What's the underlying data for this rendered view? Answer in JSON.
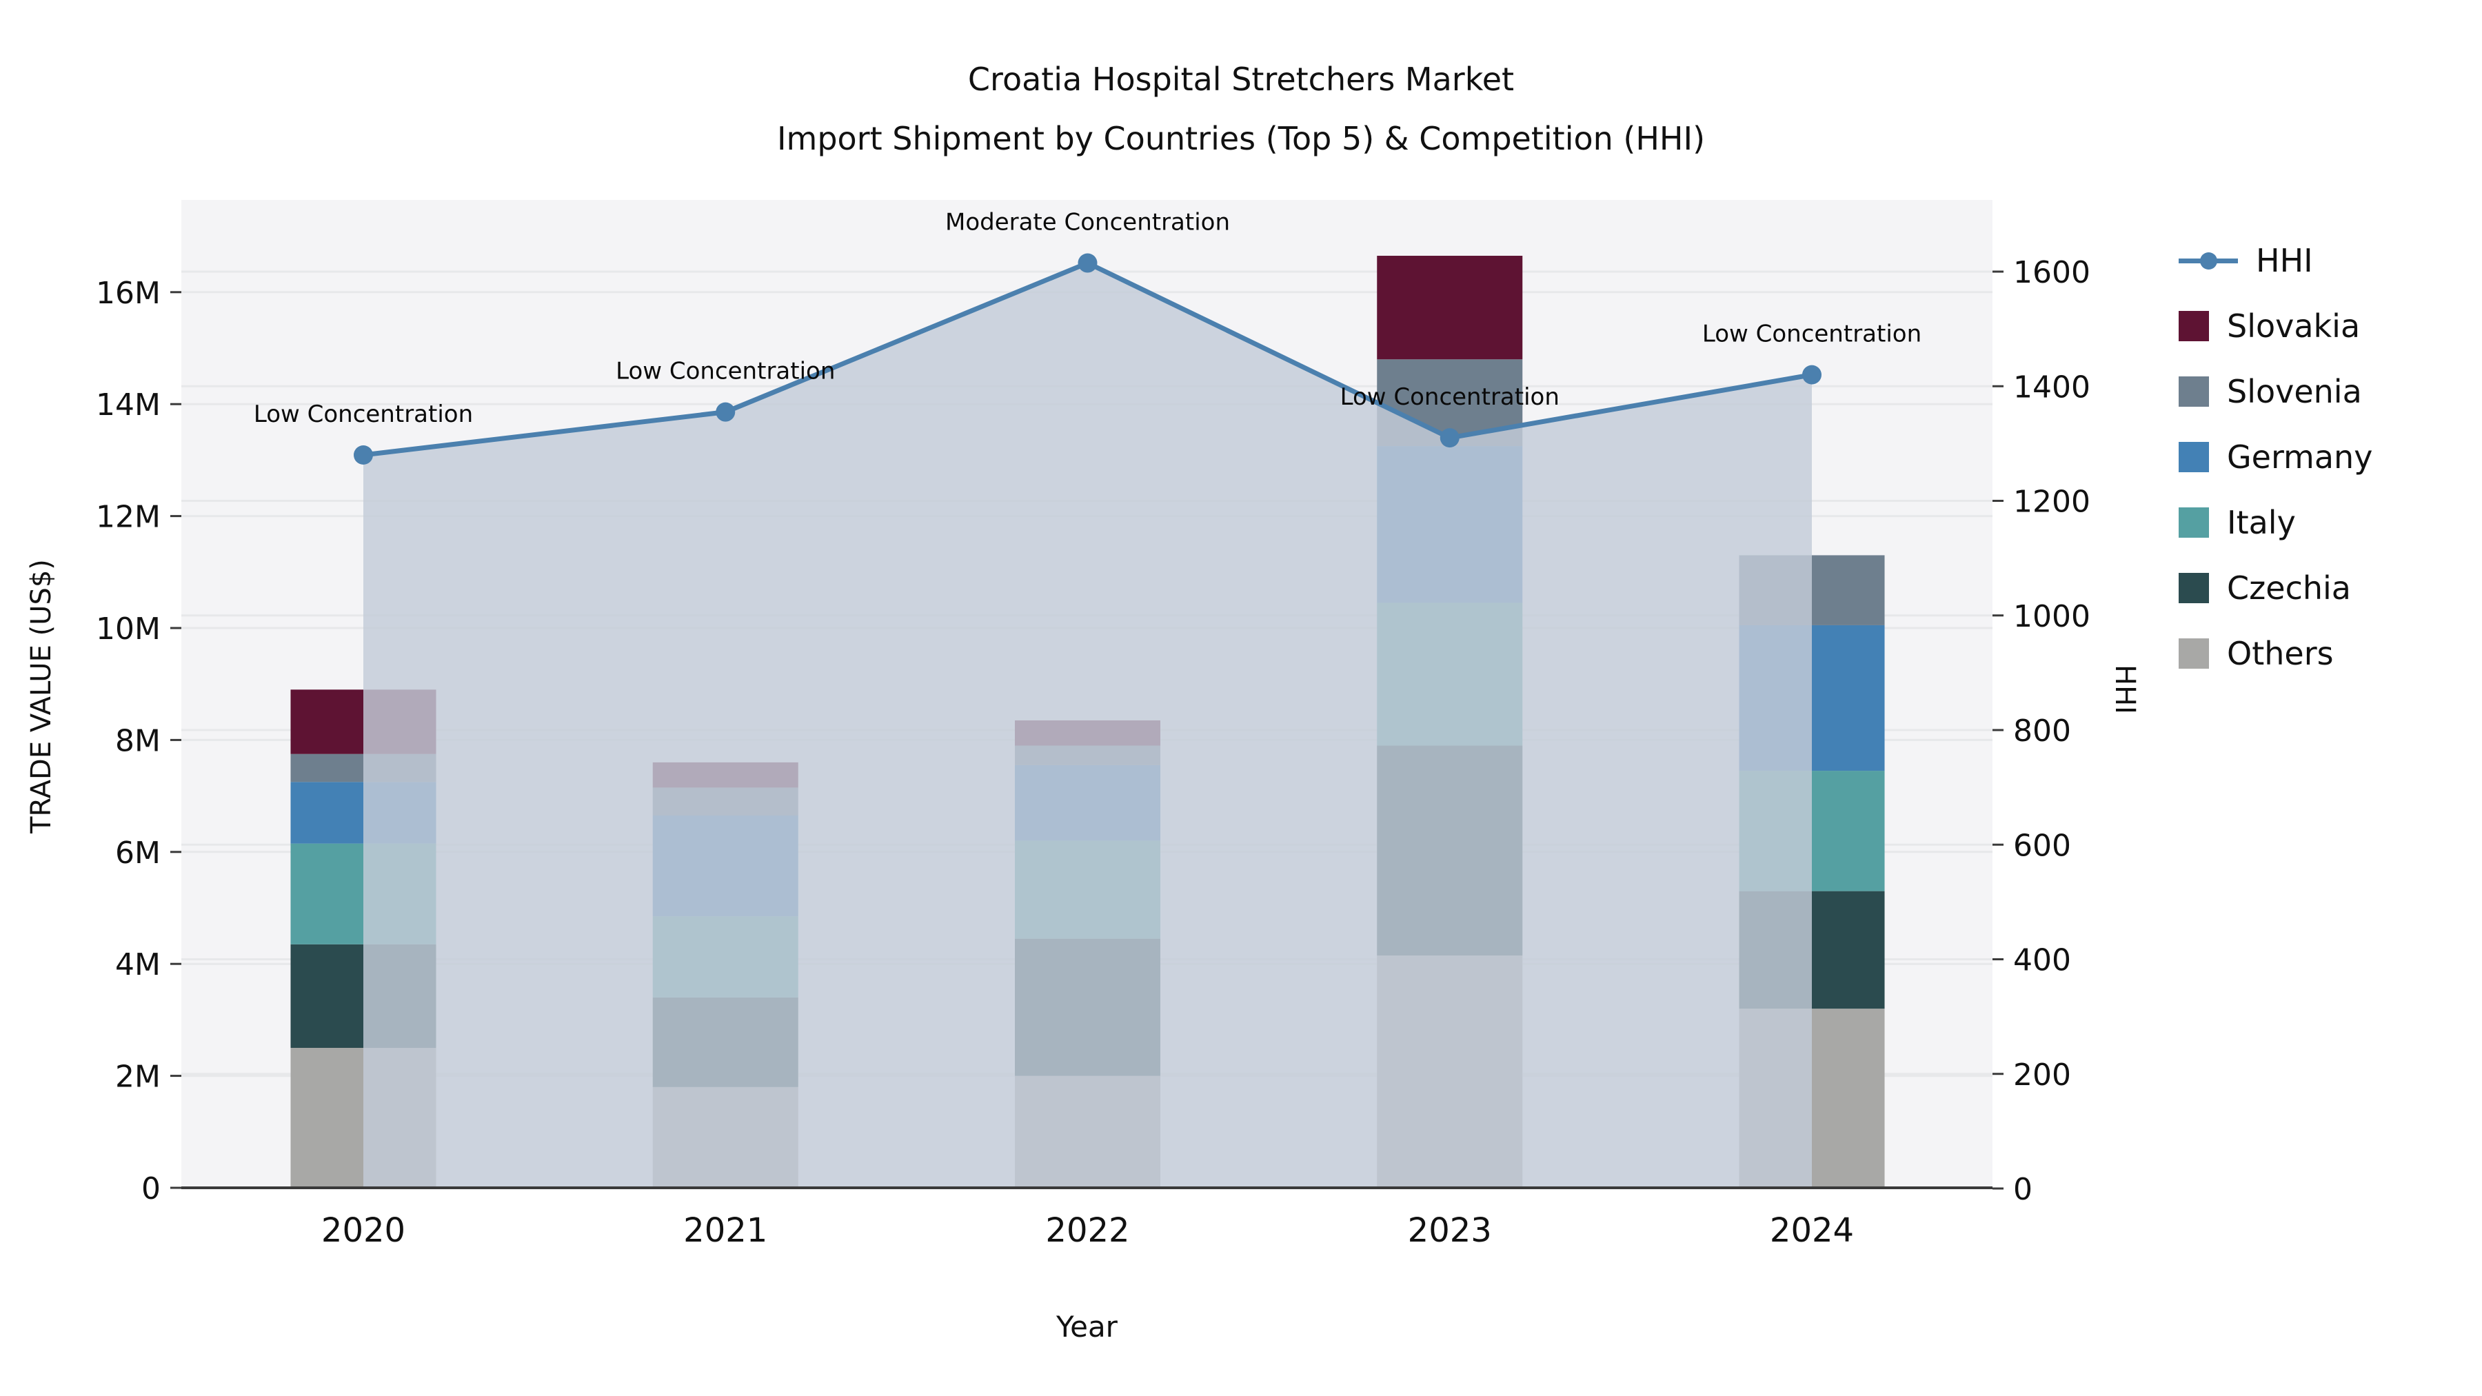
{
  "title_line1": "Croatia Hospital Stretchers Market",
  "title_line2": "Import Shipment by Countries (Top 5) & Competition (HHI)",
  "axes": {
    "x_label": "Year",
    "y_left_label": "TRADE VALUE (US$)",
    "y_right_label": "HHI",
    "y_left_tick_labels": [
      "0",
      "2M",
      "4M",
      "6M",
      "8M",
      "10M",
      "12M",
      "14M",
      "16M"
    ],
    "y_left_tick_values": [
      0,
      2,
      4,
      6,
      8,
      10,
      12,
      14,
      16
    ],
    "y_right_tick_labels": [
      "0",
      "200",
      "400",
      "600",
      "800",
      "1000",
      "1200",
      "1400",
      "1600"
    ],
    "y_right_tick_values": [
      0,
      200,
      400,
      600,
      800,
      1000,
      1200,
      1400,
      1600
    ]
  },
  "chart_data": {
    "type": "bar+line",
    "unit_left": "millions US$",
    "unit_right": "HHI index",
    "categories": [
      "2020",
      "2021",
      "2022",
      "2023",
      "2024"
    ],
    "stack_order_bottom_to_top": [
      "Others",
      "Czechia",
      "Italy",
      "Germany",
      "Slovenia",
      "Slovakia"
    ],
    "series": [
      {
        "name": "Others",
        "color": "#a8a8a6",
        "values": [
          2.5,
          1.8,
          2.0,
          4.15,
          3.2
        ]
      },
      {
        "name": "Czechia",
        "color": "#2b4b4f",
        "values": [
          1.85,
          1.6,
          2.45,
          3.75,
          2.1
        ]
      },
      {
        "name": "Italy",
        "color": "#55a0a2",
        "values": [
          1.8,
          1.45,
          1.75,
          2.55,
          2.15
        ]
      },
      {
        "name": "Germany",
        "color": "#4381b5",
        "values": [
          1.1,
          1.8,
          1.35,
          2.8,
          2.6
        ]
      },
      {
        "name": "Slovenia",
        "color": "#6e7f8e",
        "values": [
          0.5,
          0.5,
          0.35,
          1.55,
          1.25
        ]
      },
      {
        "name": "Slovakia",
        "color": "#5e1333",
        "values": [
          1.15,
          0.45,
          0.45,
          1.85,
          0
        ]
      }
    ],
    "bar_totals": [
      8.9,
      7.6,
      8.35,
      16.65,
      11.3
    ],
    "line_series": {
      "name": "HHI",
      "color": "#4b80ae",
      "fill_color": "rgba(195,204,216,0.82)",
      "values": [
        1280,
        1355,
        1615,
        1310,
        1420
      ]
    },
    "annotations": [
      {
        "category": "2020",
        "text": "Low Concentration"
      },
      {
        "category": "2021",
        "text": "Low Concentration"
      },
      {
        "category": "2022",
        "text": "Moderate Concentration"
      },
      {
        "category": "2023",
        "text": "Low Concentration"
      },
      {
        "category": "2024",
        "text": "Low Concentration"
      }
    ],
    "ylim_left": [
      0,
      17.65
    ],
    "ylim_right": [
      0,
      1725
    ],
    "grid": true,
    "legend_position": "right",
    "legend_order": [
      "HHI",
      "Slovakia",
      "Slovenia",
      "Germany",
      "Italy",
      "Czechia",
      "Others"
    ]
  },
  "colors": {
    "plot_background": "#f4f4f6",
    "gridline": "#e7e8ea",
    "axis_spine": "#3a3a3a",
    "hhi_line": "#4b80ae",
    "hhi_area": "rgba(195,204,216,0.82)"
  }
}
